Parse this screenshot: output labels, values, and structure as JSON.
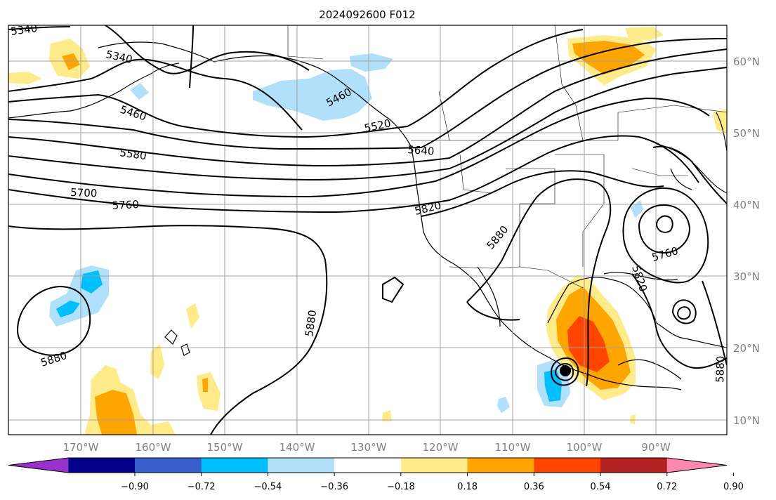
{
  "title": "2024092600 F012",
  "lon_labels": [
    "170°W",
    "160°W",
    "150°W",
    "140°W",
    "130°W",
    "120°W",
    "110°W",
    "100°W",
    "90°W"
  ],
  "lat_labels": [
    "60°N",
    "50°N",
    "40°N",
    "30°N",
    "20°N",
    "10°N"
  ],
  "contour_labels": [
    "5340",
    "5340",
    "5460",
    "5580",
    "5700",
    "5760",
    "5880",
    "5880",
    "5520",
    "5640",
    "5820",
    "5880",
    "5760",
    "5820",
    "5880",
    "5460"
  ],
  "colorbar": {
    "colors": [
      "#9932cc",
      "#00008b",
      "#3a5fcd",
      "#00bfff",
      "#b0e0fa",
      "#ffffff",
      "#ffeb8a",
      "#ffa500",
      "#ff4500",
      "#b22222",
      "#ff88b0"
    ],
    "tick_labels": [
      "−0.90",
      "−0.72",
      "−0.54",
      "−0.36",
      "−0.18",
      "0.18",
      "0.36",
      "0.54",
      "0.72",
      "0.90"
    ]
  },
  "marker": {
    "label": "storm-center"
  }
}
